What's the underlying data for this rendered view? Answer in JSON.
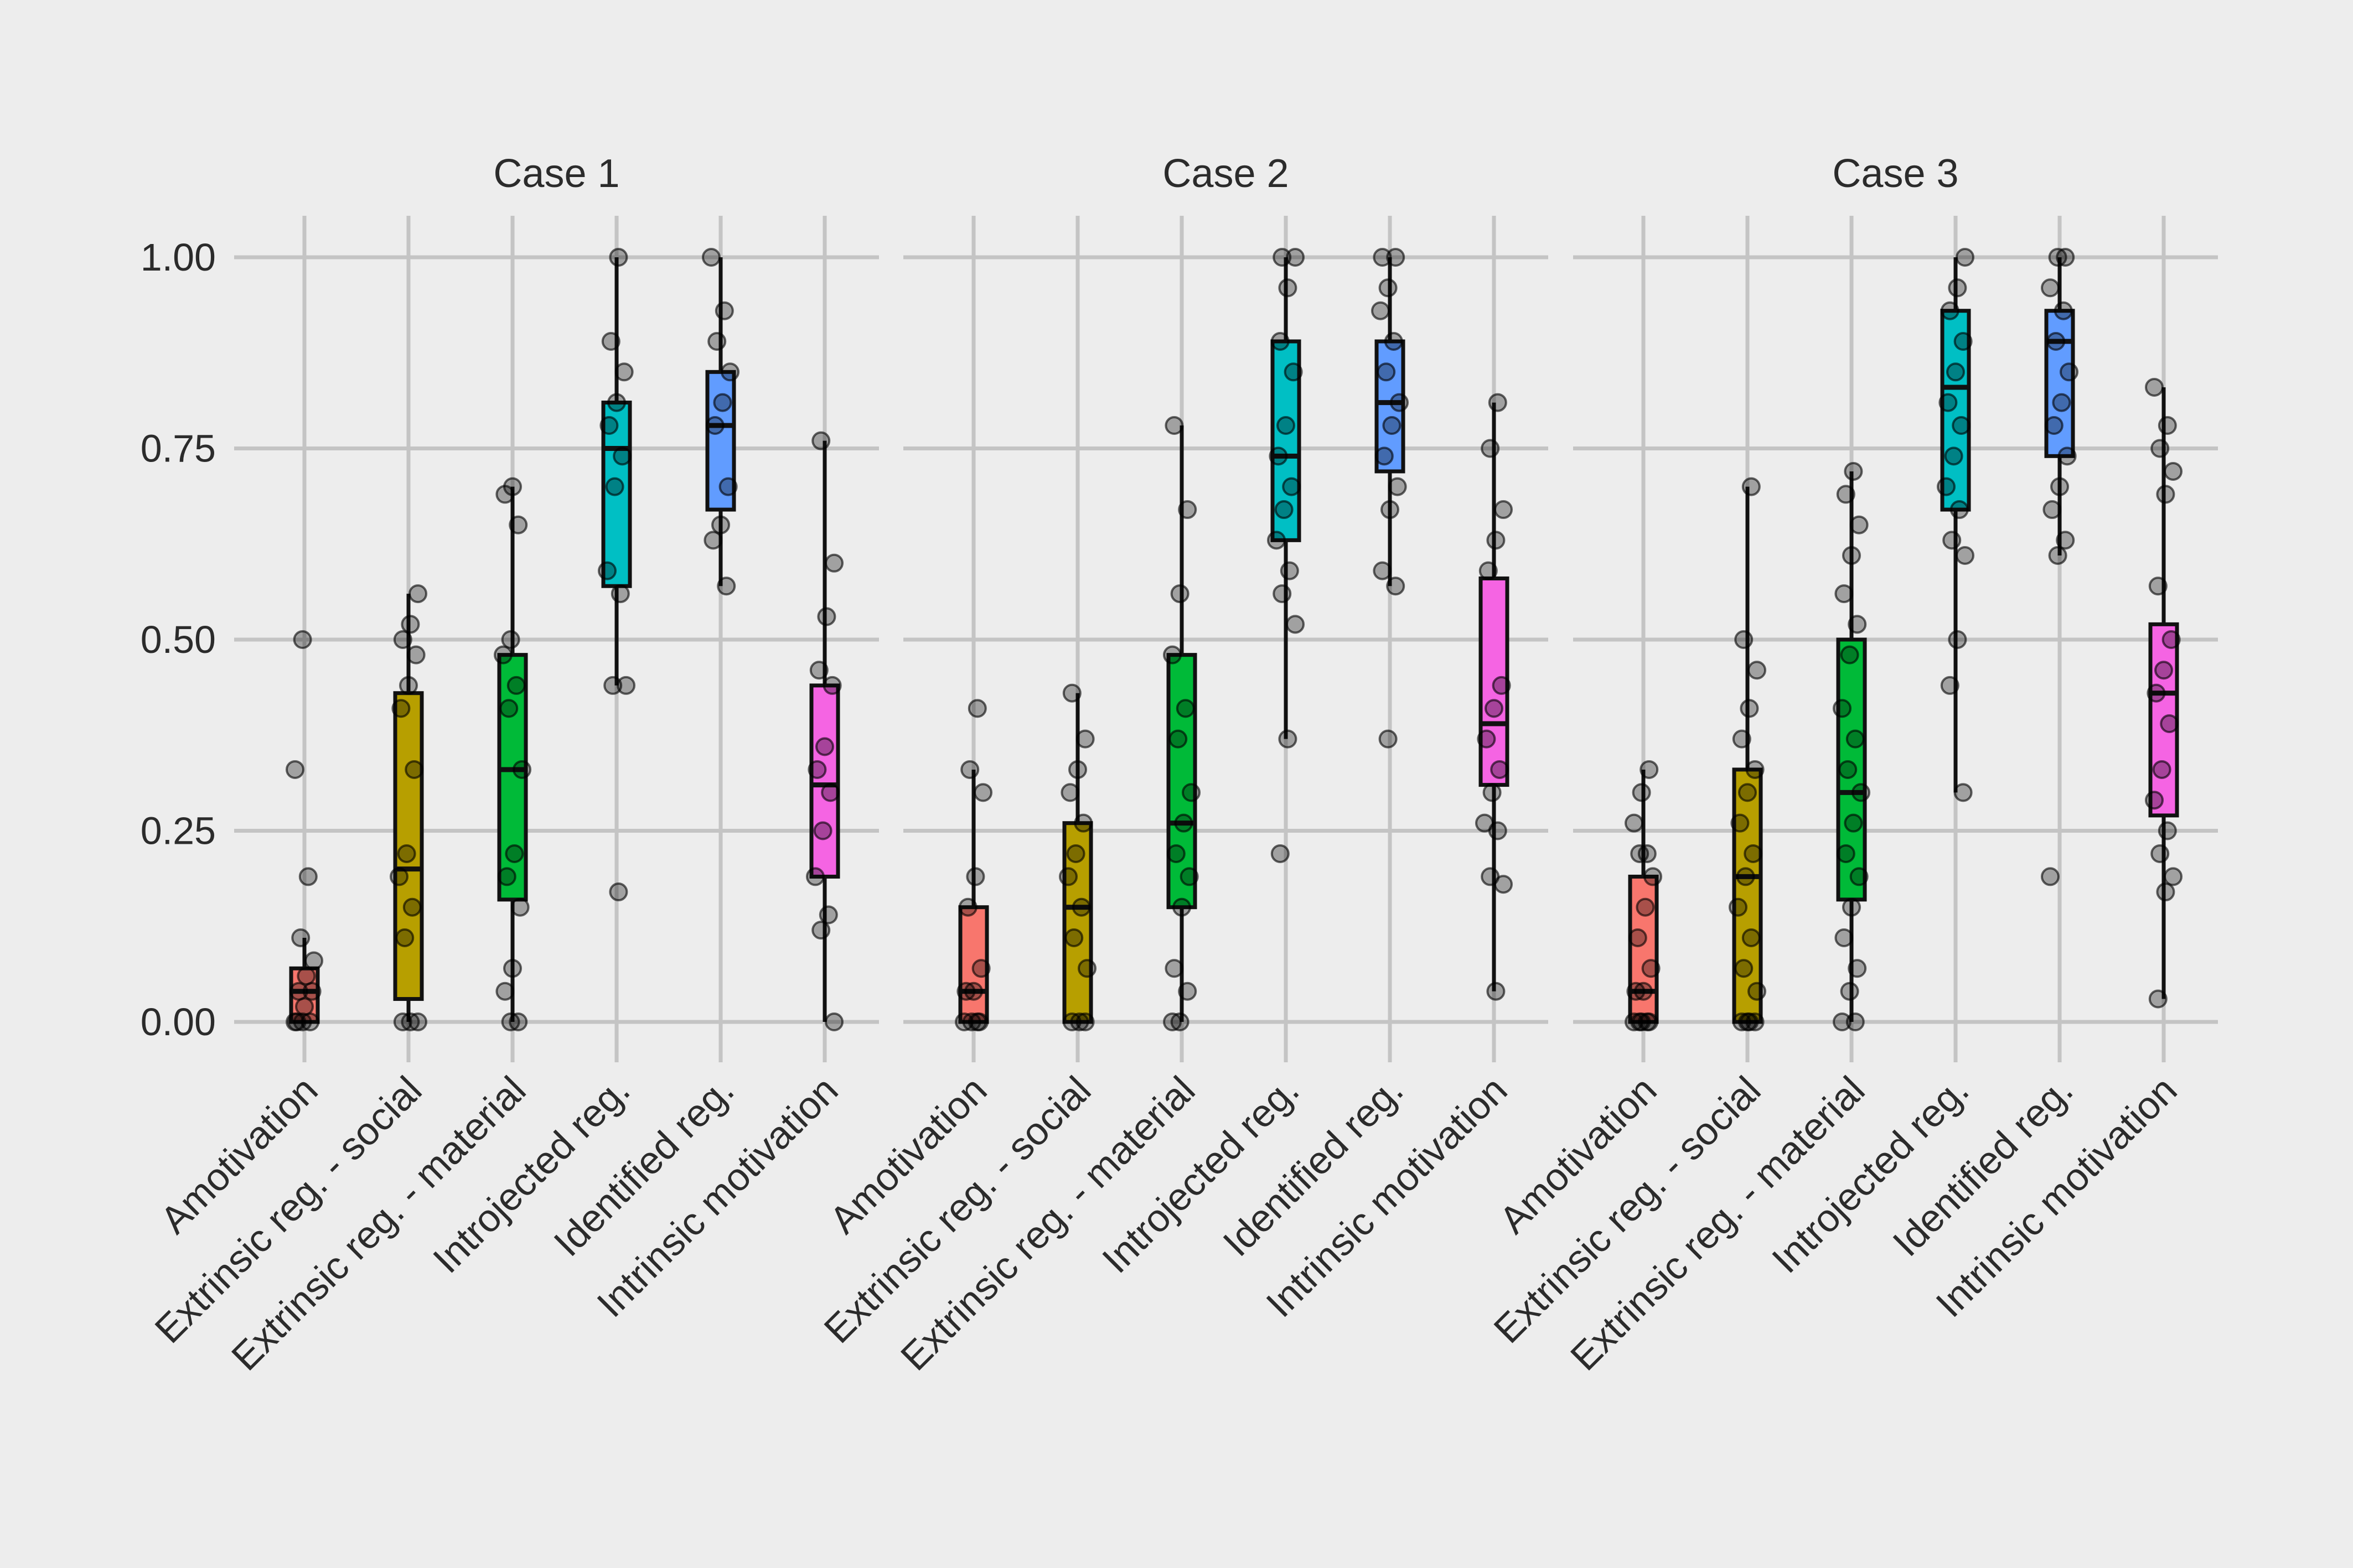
{
  "chart_data": {
    "type": "boxplot",
    "title": "",
    "xlabel": "",
    "ylabel": "",
    "ylim": [
      -0.05,
      1.05
    ],
    "y_ticks": [
      0,
      0.25,
      0.5,
      0.75,
      1
    ],
    "y_tick_labels": [
      "0.00",
      "0.25",
      "0.50",
      "0.75",
      "1.00"
    ],
    "grid": true,
    "legend": "none",
    "categories": [
      "Amotivation",
      "Extrinsic reg. - social",
      "Extrinsic reg. - material",
      "Introjected reg.",
      "Identified reg.",
      "Intrinsic motivation"
    ],
    "category_colors": [
      "#f8766d",
      "#b79f00",
      "#00ba38",
      "#00bfc4",
      "#619cff",
      "#f564e3"
    ],
    "facets": [
      {
        "title": "Case 1",
        "boxes": [
          {
            "min": 0.0,
            "q1": 0.0,
            "median": 0.04,
            "q3": 0.07,
            "max": 0.11
          },
          {
            "min": 0.0,
            "q1": 0.03,
            "median": 0.2,
            "q3": 0.43,
            "max": 0.56
          },
          {
            "min": 0.0,
            "q1": 0.16,
            "median": 0.33,
            "q3": 0.48,
            "max": 0.7
          },
          {
            "min": 0.44,
            "q1": 0.57,
            "median": 0.75,
            "q3": 0.81,
            "max": 1.0
          },
          {
            "min": 0.57,
            "q1": 0.67,
            "median": 0.78,
            "q3": 0.85,
            "max": 1.0
          },
          {
            "min": 0.0,
            "q1": 0.19,
            "median": 0.31,
            "q3": 0.44,
            "max": 0.76
          }
        ],
        "points": [
          [
            0,
            0,
            0,
            0,
            0.02,
            0.04,
            0.04,
            0.06,
            0.08,
            0.11,
            0.19,
            0.33,
            0.5
          ],
          [
            0,
            0,
            0,
            0.11,
            0.15,
            0.19,
            0.22,
            0.33,
            0.41,
            0.44,
            0.48,
            0.5,
            0.52,
            0.56
          ],
          [
            0,
            0,
            0.04,
            0.07,
            0.15,
            0.19,
            0.22,
            0.33,
            0.41,
            0.44,
            0.48,
            0.5,
            0.65,
            0.69,
            0.7
          ],
          [
            0.17,
            0.44,
            0.44,
            0.56,
            0.59,
            0.7,
            0.74,
            0.78,
            0.81,
            0.85,
            0.89,
            1.0
          ],
          [
            0.57,
            0.63,
            0.65,
            0.7,
            0.78,
            0.81,
            0.85,
            0.89,
            0.93,
            1.0
          ],
          [
            0,
            0.12,
            0.14,
            0.19,
            0.25,
            0.3,
            0.33,
            0.36,
            0.44,
            0.46,
            0.53,
            0.6,
            0.76
          ]
        ]
      },
      {
        "title": "Case 2",
        "boxes": [
          {
            "min": 0.0,
            "q1": 0.0,
            "median": 0.04,
            "q3": 0.15,
            "max": 0.33
          },
          {
            "min": 0.0,
            "q1": 0.0,
            "median": 0.15,
            "q3": 0.26,
            "max": 0.43
          },
          {
            "min": 0.0,
            "q1": 0.15,
            "median": 0.26,
            "q3": 0.48,
            "max": 0.78
          },
          {
            "min": 0.37,
            "q1": 0.63,
            "median": 0.74,
            "q3": 0.89,
            "max": 1.0
          },
          {
            "min": 0.57,
            "q1": 0.72,
            "median": 0.81,
            "q3": 0.89,
            "max": 1.0
          },
          {
            "min": 0.04,
            "q1": 0.31,
            "median": 0.39,
            "q3": 0.58,
            "max": 0.81
          }
        ],
        "points": [
          [
            0,
            0,
            0,
            0,
            0.04,
            0.04,
            0.07,
            0.15,
            0.19,
            0.3,
            0.33,
            0.41
          ],
          [
            0,
            0,
            0,
            0.07,
            0.11,
            0.15,
            0.19,
            0.22,
            0.26,
            0.3,
            0.33,
            0.37,
            0.43
          ],
          [
            0,
            0,
            0.04,
            0.07,
            0.15,
            0.19,
            0.22,
            0.26,
            0.3,
            0.37,
            0.41,
            0.48,
            0.56,
            0.67,
            0.78
          ],
          [
            0.22,
            0.37,
            0.52,
            0.56,
            0.59,
            0.63,
            0.67,
            0.7,
            0.74,
            0.78,
            0.85,
            0.89,
            0.96,
            1.0,
            1.0
          ],
          [
            0.37,
            0.57,
            0.59,
            0.67,
            0.7,
            0.74,
            0.78,
            0.81,
            0.85,
            0.89,
            0.93,
            0.96,
            1.0,
            1.0
          ],
          [
            0.04,
            0.18,
            0.19,
            0.25,
            0.26,
            0.3,
            0.33,
            0.37,
            0.41,
            0.44,
            0.59,
            0.63,
            0.67,
            0.75,
            0.81
          ]
        ]
      },
      {
        "title": "Case 3",
        "boxes": [
          {
            "min": 0.0,
            "q1": 0.0,
            "median": 0.04,
            "q3": 0.19,
            "max": 0.33
          },
          {
            "min": 0.0,
            "q1": 0.0,
            "median": 0.19,
            "q3": 0.33,
            "max": 0.7
          },
          {
            "min": 0.0,
            "q1": 0.16,
            "median": 0.3,
            "q3": 0.5,
            "max": 0.72
          },
          {
            "min": 0.3,
            "q1": 0.67,
            "median": 0.83,
            "q3": 0.93,
            "max": 1.0
          },
          {
            "min": 0.61,
            "q1": 0.74,
            "median": 0.89,
            "q3": 0.93,
            "max": 1.0
          },
          {
            "min": 0.03,
            "q1": 0.27,
            "median": 0.43,
            "q3": 0.52,
            "max": 0.83
          }
        ],
        "points": [
          [
            0,
            0,
            0,
            0,
            0,
            0.04,
            0.04,
            0.07,
            0.11,
            0.15,
            0.19,
            0.22,
            0.22,
            0.26,
            0.3,
            0.33
          ],
          [
            0,
            0,
            0,
            0,
            0.04,
            0.07,
            0.11,
            0.15,
            0.19,
            0.22,
            0.26,
            0.3,
            0.33,
            0.37,
            0.41,
            0.46,
            0.5,
            0.7
          ],
          [
            0,
            0,
            0.04,
            0.07,
            0.11,
            0.15,
            0.19,
            0.22,
            0.26,
            0.3,
            0.33,
            0.37,
            0.41,
            0.48,
            0.52,
            0.56,
            0.61,
            0.65,
            0.69,
            0.72
          ],
          [
            0.3,
            0.44,
            0.5,
            0.61,
            0.63,
            0.67,
            0.7,
            0.74,
            0.78,
            0.81,
            0.85,
            0.89,
            0.93,
            0.96,
            1.0
          ],
          [
            0.19,
            0.61,
            0.63,
            0.67,
            0.7,
            0.74,
            0.78,
            0.81,
            0.85,
            0.89,
            0.93,
            0.96,
            1.0,
            1.0
          ],
          [
            0.03,
            0.17,
            0.19,
            0.22,
            0.25,
            0.29,
            0.33,
            0.39,
            0.43,
            0.46,
            0.5,
            0.57,
            0.69,
            0.72,
            0.75,
            0.78,
            0.83
          ]
        ]
      }
    ]
  }
}
